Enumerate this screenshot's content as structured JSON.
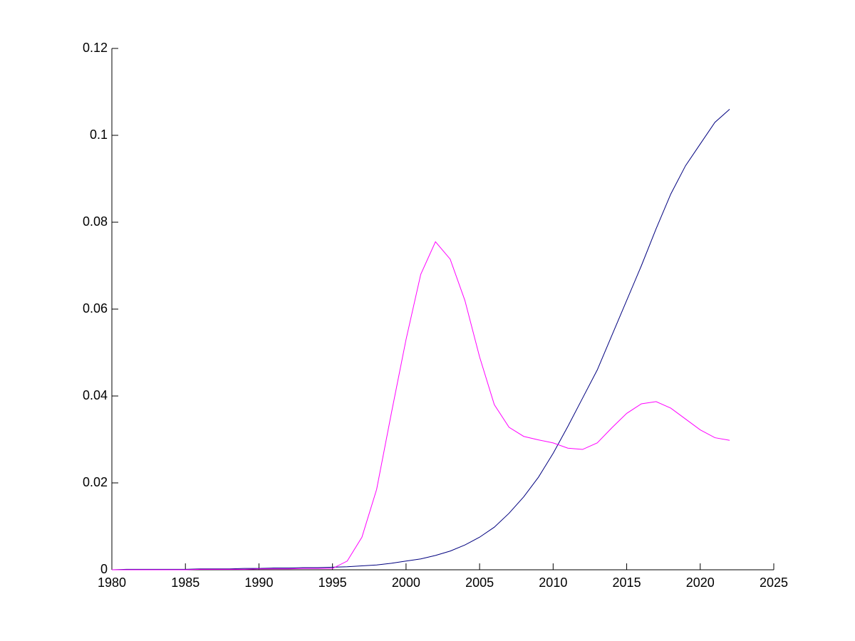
{
  "chart_data": {
    "type": "line",
    "x": [
      1980,
      1981,
      1982,
      1983,
      1984,
      1985,
      1986,
      1987,
      1988,
      1989,
      1990,
      1991,
      1992,
      1993,
      1994,
      1995,
      1996,
      1997,
      1998,
      1999,
      2000,
      2001,
      2002,
      2003,
      2004,
      2005,
      2006,
      2007,
      2008,
      2009,
      2010,
      2011,
      2012,
      2013,
      2014,
      2015,
      2016,
      2017,
      2018,
      2019,
      2020,
      2021,
      2022
    ],
    "series": [
      {
        "color": "#00007f",
        "values": [
          0,
          0.0001,
          0.0001,
          0.0001,
          0.0001,
          0.0001,
          0.0002,
          0.0002,
          0.0002,
          0.0003,
          0.0003,
          0.0004,
          0.0004,
          0.0005,
          0.0005,
          0.0006,
          0.0007,
          0.0009,
          0.0011,
          0.0015,
          0.002,
          0.0025,
          0.0033,
          0.0043,
          0.0057,
          0.0075,
          0.0098,
          0.013,
          0.0168,
          0.0213,
          0.0268,
          0.033,
          0.0395,
          0.046,
          0.054,
          0.062,
          0.07,
          0.0785,
          0.0865,
          0.093,
          0.098,
          0.103,
          0.106
        ]
      },
      {
        "color": "#ff00ff",
        "values": [
          0,
          0,
          0,
          0,
          0,
          0,
          0.0001,
          0.0001,
          0.0001,
          0.0001,
          0.0002,
          0.0002,
          0.0002,
          0.0003,
          0.0003,
          0.0003,
          0.002,
          0.0075,
          0.0185,
          0.036,
          0.053,
          0.068,
          0.0755,
          0.0715,
          0.062,
          0.049,
          0.038,
          0.0328,
          0.0307,
          0.0299,
          0.0292,
          0.028,
          0.0277,
          0.0292,
          0.0327,
          0.036,
          0.0382,
          0.0387,
          0.0372,
          0.0347,
          0.0322,
          0.0304,
          0.0298
        ]
      }
    ],
    "xlim": [
      1980,
      2025
    ],
    "xticks": [
      1980,
      1985,
      1990,
      1995,
      2000,
      2005,
      2010,
      2015,
      2020,
      2025
    ],
    "ylim": [
      0,
      0.12
    ],
    "yticks": [
      0,
      0.02,
      0.04,
      0.06,
      0.08,
      0.1,
      0.12
    ],
    "grid": false
  }
}
